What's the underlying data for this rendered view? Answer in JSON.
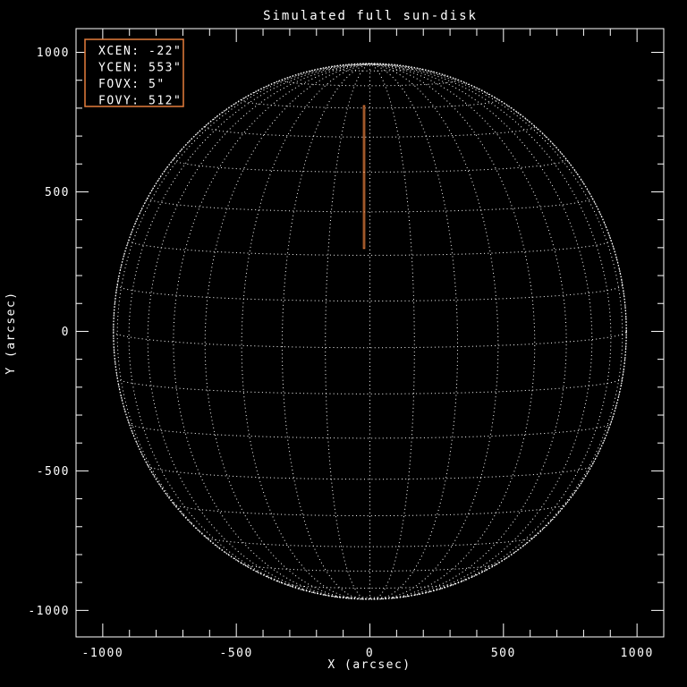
{
  "chart_data": {
    "type": "line",
    "title": "Simulated full sun-disk",
    "xlabel": "X (arcsec)",
    "ylabel": "Y (arcsec)",
    "xlim": [
      -1100,
      1100
    ],
    "ylim": [
      -1095,
      1085
    ],
    "x_ticks": {
      "major": [
        -1000,
        -500,
        0,
        500,
        1000
      ],
      "minor_interval": 100
    },
    "y_ticks": {
      "major": [
        -1000,
        -500,
        0,
        500,
        1000
      ],
      "minor_interval": 100
    },
    "grid_on": true,
    "colors": {
      "background": "#000000",
      "foreground": "#ffffff",
      "accent_orange": "#e67e3c"
    },
    "solar_grid": {
      "radius_arcsec": 960,
      "b0_tilt_deg": 3.5,
      "grid_step_deg": 10,
      "lat_min": -80,
      "lat_max": 80,
      "lon_min": -90,
      "lon_max": 90,
      "line_style": "dotted"
    },
    "fov_box": {
      "xcen_arcsec": -22,
      "ycen_arcsec": 553,
      "fovx_arcsec": 5,
      "fovy_arcsec": 512
    },
    "legend": {
      "items": [
        {
          "label": "XCEN:",
          "value": "-22\""
        },
        {
          "label": "YCEN:",
          "value": "553\""
        },
        {
          "label": "FOVX:",
          "value": "5\""
        },
        {
          "label": "FOVY:",
          "value": "512\""
        }
      ]
    }
  }
}
